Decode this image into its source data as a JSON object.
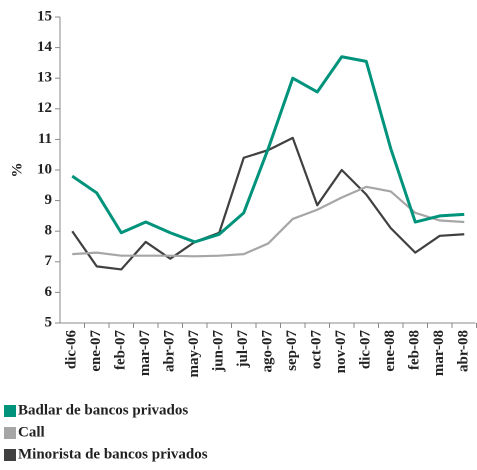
{
  "chart_data": {
    "type": "line",
    "y_label": "%",
    "categories": [
      "dic-06",
      "ene-07",
      "feb-07",
      "mar-07",
      "abr-07",
      "may-07",
      "jun-07",
      "jul-07",
      "ago-07",
      "sep-07",
      "oct-07",
      "nov-07",
      "dic-07",
      "ene-08",
      "feb-08",
      "mar-08",
      "abr-08"
    ],
    "series": [
      {
        "name": "Badlar de bancos privados",
        "color": "#00937b",
        "values": [
          9.8,
          9.25,
          7.95,
          8.3,
          7.95,
          7.65,
          7.9,
          8.6,
          10.7,
          13.0,
          12.55,
          13.7,
          13.55,
          10.7,
          8.3,
          8.5,
          8.55
        ]
      },
      {
        "name": "Call",
        "color": "#a6a6a6",
        "values": [
          7.25,
          7.3,
          7.2,
          7.2,
          7.2,
          7.18,
          7.2,
          7.25,
          7.6,
          8.4,
          8.7,
          9.1,
          9.45,
          9.3,
          8.6,
          8.35,
          8.3
        ]
      },
      {
        "name": "Minorista de bancos privados",
        "color": "#404040",
        "values": [
          8.0,
          6.85,
          6.75,
          7.65,
          7.1,
          7.65,
          7.95,
          10.4,
          10.65,
          11.05,
          8.85,
          10.0,
          9.2,
          8.1,
          7.3,
          7.85,
          7.9
        ]
      }
    ],
    "ylim": [
      5,
      15
    ],
    "yticks": [
      5,
      6,
      7,
      8,
      9,
      10,
      11,
      12,
      13,
      14,
      15
    ],
    "grid": false
  }
}
